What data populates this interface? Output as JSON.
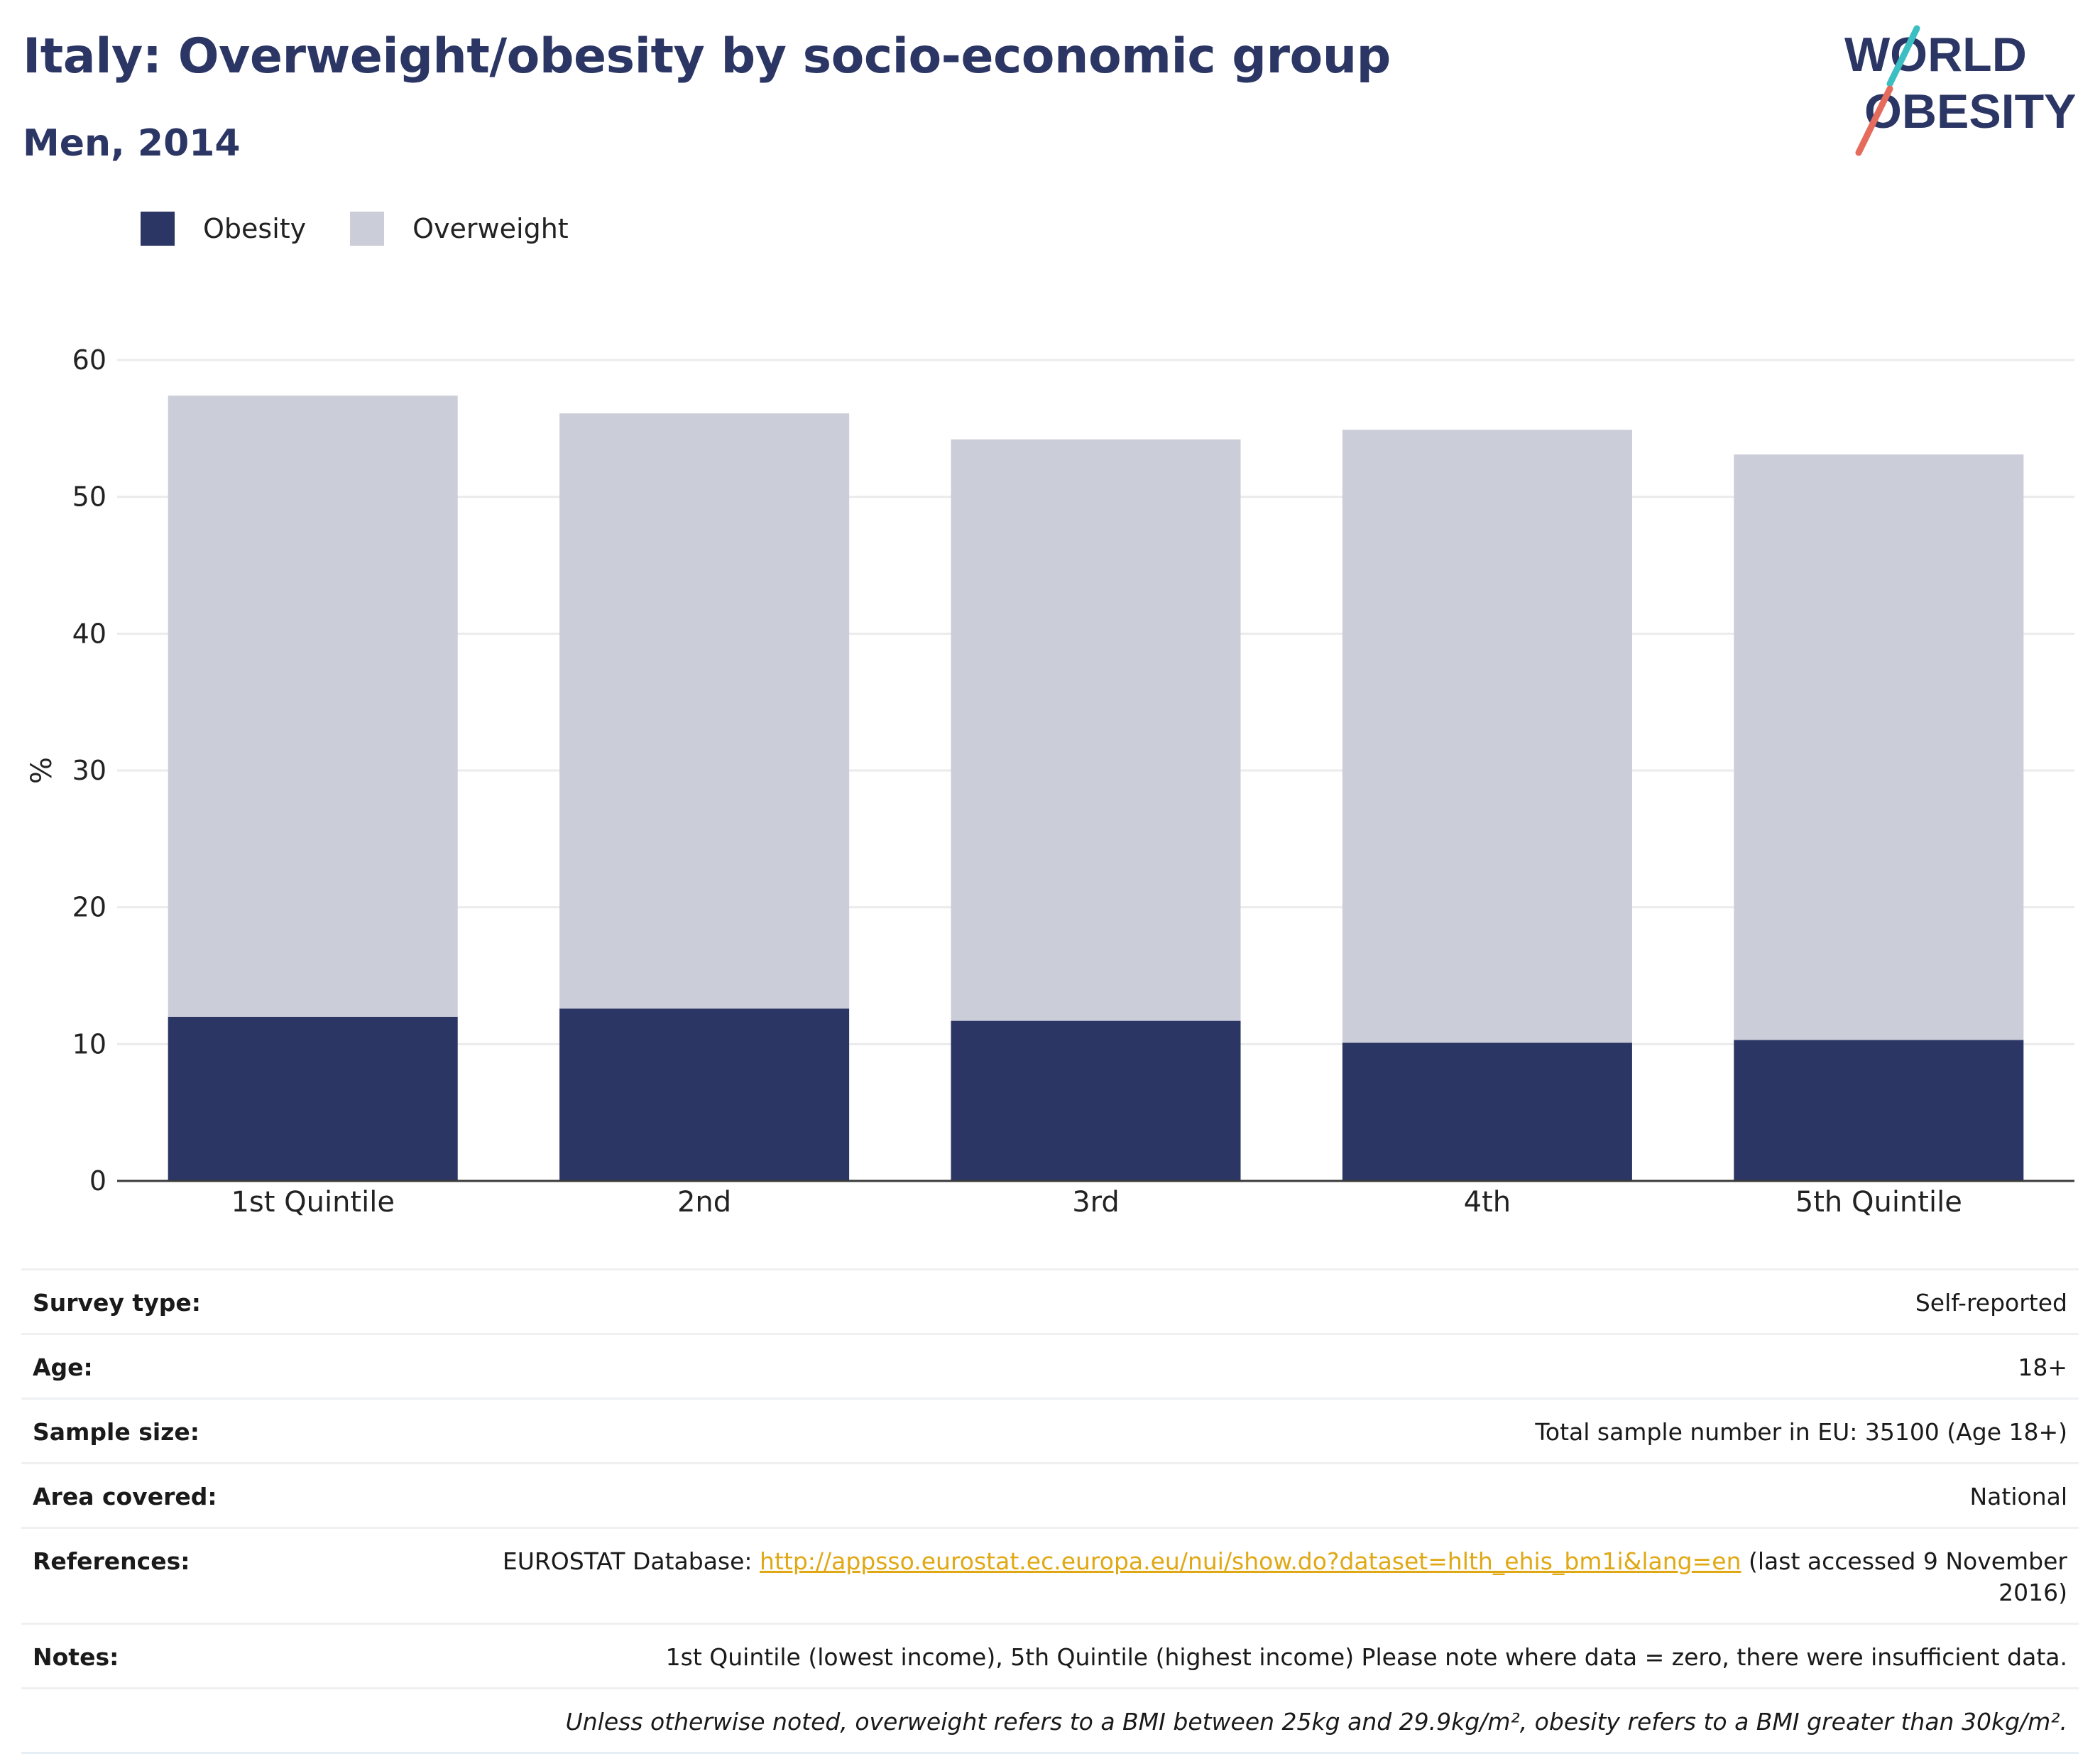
{
  "header": {
    "title": "Italy: Overweight/obesity by socio-economic group",
    "subtitle": "Men, 2014"
  },
  "logo": {
    "line1": "WORLD",
    "line2": "OBESITY"
  },
  "colors": {
    "obesity": "#2b3664",
    "overweight": "#cbcdd8",
    "accent_teal": "#3bbfc3",
    "accent_coral": "#e56b5d",
    "link": "#e0a814"
  },
  "chart_data": {
    "type": "bar",
    "stacked": true,
    "categories": [
      "1st Quintile",
      "2nd",
      "3rd",
      "4th",
      "5th Quintile"
    ],
    "series": [
      {
        "name": "Obesity",
        "values": [
          12.0,
          12.6,
          11.7,
          10.1,
          10.3
        ]
      },
      {
        "name": "Overweight",
        "values": [
          45.4,
          43.5,
          42.5,
          44.8,
          42.8
        ]
      }
    ],
    "ylabel": "%",
    "ylim": [
      0,
      60
    ],
    "yticks": [
      0,
      10,
      20,
      30,
      40,
      50,
      60
    ],
    "grid": true,
    "legend": "top-left"
  },
  "info": {
    "survey_type": {
      "label": "Survey type:",
      "value": "Self-reported"
    },
    "age": {
      "label": "Age:",
      "value": "18+"
    },
    "sample_size": {
      "label": "Sample size:",
      "value": "Total sample number in EU: 35100 (Age 18+)"
    },
    "area": {
      "label": "Area covered:",
      "value": "National"
    },
    "references": {
      "label": "References:",
      "prefix": "EUROSTAT Database: ",
      "link": "http://appsso.eurostat.ec.europa.eu/nui/show.do?dataset=hlth_ehis_bm1i&lang=en",
      "suffix": " (last accessed 9 November 2016)"
    },
    "notes": {
      "label": "Notes:",
      "value": "1st Quintile (lowest income), 5th Quintile (highest income) Please note where data = zero, there were insufficient data."
    },
    "bmi_note": "Unless otherwise noted, overweight refers to a BMI between 25kg and 29.9kg/m², obesity refers to a BMI greater than 30kg/m²."
  }
}
